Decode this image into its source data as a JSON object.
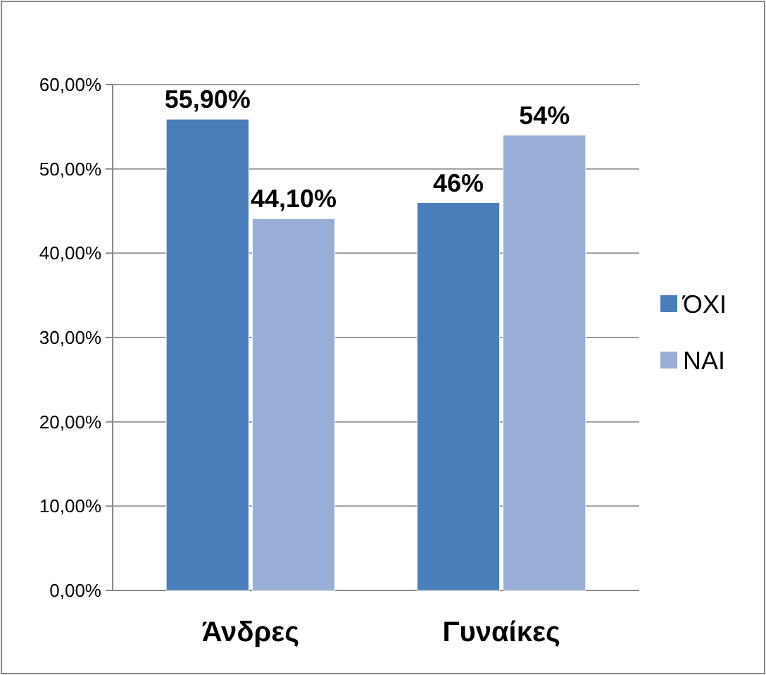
{
  "chart_data": {
    "type": "bar",
    "categories": [
      "Άνδρες",
      "Γυναίκες"
    ],
    "series": [
      {
        "name": "ΌΧΙ",
        "color": "#4a7ebb",
        "values": [
          55.9,
          46
        ],
        "value_labels": [
          "55,90%",
          "46%"
        ]
      },
      {
        "name": "ΝΑΙ",
        "color": "#98aed6",
        "values": [
          44.1,
          54
        ],
        "value_labels": [
          "44,10%",
          "54%"
        ]
      }
    ],
    "ylim": [
      0,
      60
    ],
    "yticks": [
      {
        "value": 0,
        "label": "0,00%"
      },
      {
        "value": 10,
        "label": "10,00%"
      },
      {
        "value": 20,
        "label": "20,00%"
      },
      {
        "value": 30,
        "label": "30,00%"
      },
      {
        "value": 40,
        "label": "40,00%"
      },
      {
        "value": 50,
        "label": "50,00%"
      },
      {
        "value": 60,
        "label": "60,00%"
      }
    ],
    "grid": "y",
    "legend": "right"
  }
}
